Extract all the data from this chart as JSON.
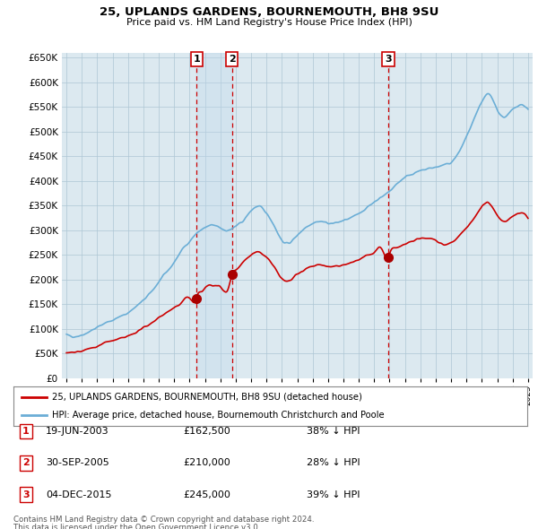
{
  "title": "25, UPLANDS GARDENS, BOURNEMOUTH, BH8 9SU",
  "subtitle": "Price paid vs. HM Land Registry's House Price Index (HPI)",
  "legend_line1": "25, UPLANDS GARDENS, BOURNEMOUTH, BH8 9SU (detached house)",
  "legend_line2": "HPI: Average price, detached house, Bournemouth Christchurch and Poole",
  "footer1": "Contains HM Land Registry data © Crown copyright and database right 2024.",
  "footer2": "This data is licensed under the Open Government Licence v3.0.",
  "transactions": [
    {
      "num": "1",
      "date": "19-JUN-2003",
      "price": "£162,500",
      "change": "38% ↓ HPI",
      "x_year": 2003.46,
      "y_val": 162500
    },
    {
      "num": "2",
      "date": "30-SEP-2005",
      "price": "£210,000",
      "change": "28% ↓ HPI",
      "x_year": 2005.75,
      "y_val": 210000
    },
    {
      "num": "3",
      "date": "04-DEC-2015",
      "price": "£245,000",
      "change": "39% ↓ HPI",
      "x_year": 2015.92,
      "y_val": 245000
    }
  ],
  "hpi_color": "#6baed6",
  "price_color": "#cc0000",
  "vline_color": "#cc0000",
  "grid_color": "#aec6d4",
  "bg_color": "#ffffff",
  "plot_bg": "#dce9f0",
  "shade_color": "#c8dff0",
  "ylim": [
    0,
    660000
  ],
  "xlim_start": 1994.7,
  "xlim_end": 2025.3
}
